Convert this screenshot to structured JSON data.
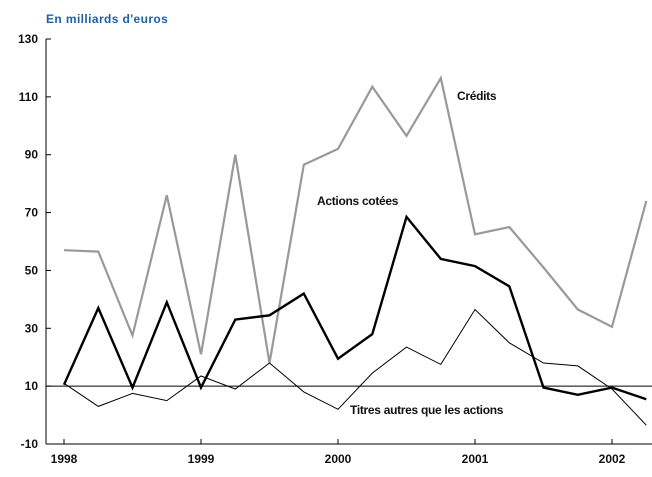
{
  "chart_data": {
    "type": "line",
    "unit_label": "En milliards d'euros",
    "x_tick_labels": [
      "1998",
      "1999",
      "2000",
      "2001",
      "2002"
    ],
    "y_ticks": [
      -10,
      10,
      30,
      50,
      70,
      90,
      110,
      130
    ],
    "ylim": [
      -10,
      130
    ],
    "xlim": [
      1998.0,
      2002.5
    ],
    "reference_line": 10,
    "grid": false,
    "series": [
      {
        "name": "Crédits",
        "x": [
          1998.0,
          1998.25,
          1998.5,
          1998.75,
          1999.0,
          1999.25,
          1999.5,
          1999.75,
          2000.0,
          2000.25,
          2000.5,
          2000.75,
          2001.0,
          2001.25,
          2001.5,
          2001.75,
          2002.0,
          2002.25
        ],
        "values": [
          57,
          56.5,
          27.5,
          76,
          21,
          90,
          18,
          86.5,
          92,
          113.5,
          96.5,
          116.5,
          62.5,
          65,
          51,
          36.5,
          30.5,
          74
        ]
      },
      {
        "name": "Actions cotées",
        "x": [
          1998.0,
          1998.25,
          1998.5,
          1998.75,
          1999.0,
          1999.25,
          1999.5,
          1999.75,
          2000.0,
          2000.25,
          2000.5,
          2000.75,
          2001.0,
          2001.25,
          2001.5,
          2001.75,
          2002.0,
          2002.25
        ],
        "values": [
          10.5,
          37,
          9.5,
          39,
          9.5,
          33,
          34.5,
          42,
          19.5,
          28,
          68.5,
          54,
          51.5,
          44.5,
          9.5,
          7,
          9.5,
          5.5
        ]
      },
      {
        "name": "Titres autres que les actions",
        "x": [
          1998.0,
          1998.25,
          1998.5,
          1998.75,
          1999.0,
          1999.25,
          1999.5,
          1999.75,
          2000.0,
          2000.25,
          2000.5,
          2000.75,
          2001.0,
          2001.25,
          2001.5,
          2001.75,
          2002.0,
          2002.25
        ],
        "values": [
          11,
          3,
          7.5,
          5,
          13.5,
          9,
          18,
          8,
          2,
          14.5,
          23.5,
          17.5,
          36.5,
          25,
          18,
          17,
          9,
          -3.5
        ]
      }
    ],
    "label_text": {
      "credits": "Crédits",
      "actions": "Actions cotées",
      "titres": "Titres autres que les actions"
    },
    "colors": {
      "credits": "#999999",
      "actions": "#000000",
      "titres": "#000000",
      "axis": "#000000",
      "unit_label": "#1f5fa8"
    }
  }
}
